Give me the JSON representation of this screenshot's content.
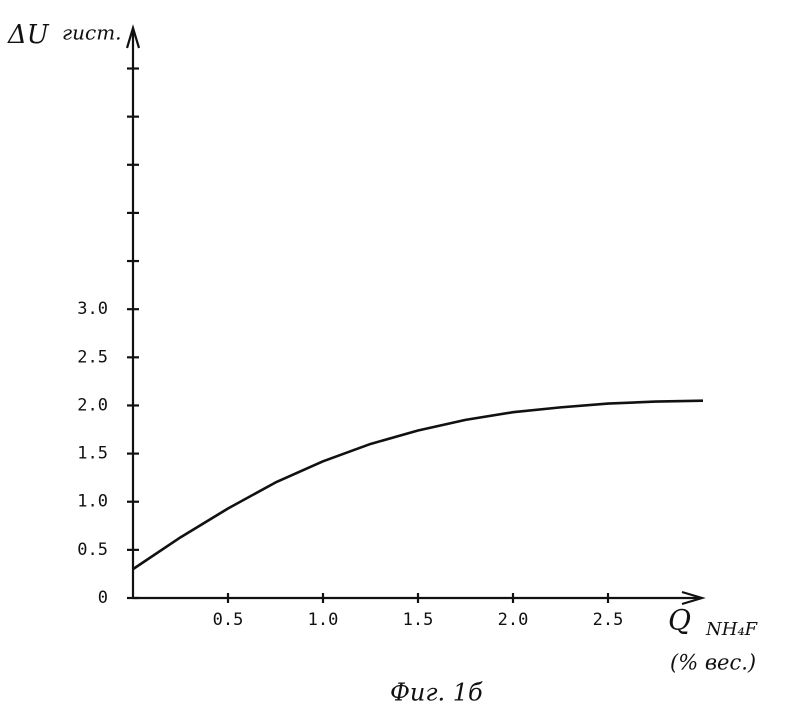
{
  "chart_data": {
    "type": "line",
    "y_label": "ΔU",
    "y_label_sub": "гист.",
    "x_label": "Q",
    "x_label_sub": "NH₄F",
    "x_unit": "(% вес.)",
    "caption": "Фиг. 1б",
    "x": [
      0,
      0.25,
      0.5,
      0.75,
      1.0,
      1.25,
      1.5,
      1.75,
      2.0,
      2.25,
      2.5,
      2.75,
      3.0
    ],
    "series": [
      {
        "color": "#111111",
        "values": [
          0.3,
          0.63,
          0.93,
          1.2,
          1.42,
          1.6,
          1.74,
          1.85,
          1.93,
          1.98,
          2.02,
          2.04,
          2.05
        ]
      }
    ],
    "xlim": [
      0,
      3.0
    ],
    "ylim": [
      0,
      5.9
    ],
    "xticks": [
      0.5,
      {
        "value": 1.0,
        "label": "1.0"
      },
      1.5,
      {
        "value": 2.0,
        "label": "2.0"
      },
      2.5
    ],
    "yticks": [
      0,
      0.5,
      {
        "value": 1.0,
        "label": "1.0"
      },
      1.5,
      {
        "value": 2.0,
        "label": "2.0"
      },
      2.5,
      {
        "value": 3.0,
        "label": "3.0"
      }
    ],
    "minor_yticks": [
      3.5,
      4.0,
      4.5,
      5.0,
      5.5
    ]
  }
}
